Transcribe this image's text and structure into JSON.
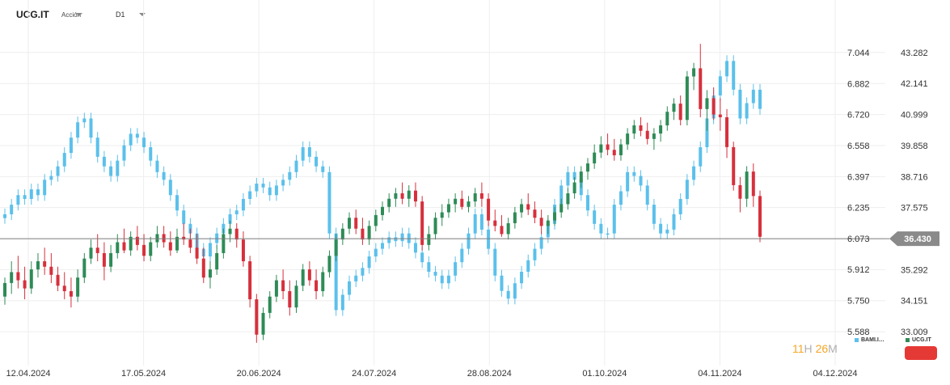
{
  "header": {
    "symbol": "UCG.IT",
    "instrument_type": "Acción",
    "timeframe": "D1"
  },
  "timer": {
    "hours": "11",
    "hours_unit": "H",
    "minutes": "26",
    "minutes_unit": "M"
  },
  "colors": {
    "up": "#2e8b57",
    "down": "#d6303c",
    "secondary": "#5bc0eb",
    "grid": "#eeeeee",
    "price_line": "#7d7d7d",
    "price_tag": "#8a8a8a",
    "alert": "#e53935"
  },
  "chart_data": {
    "type": "candlestick",
    "title": "",
    "xlabel": "",
    "ylabel": "",
    "x_tick_labels": [
      "12.04.2024",
      "17.05.2024",
      "20.06.2024",
      "24.07.2024",
      "28.08.2024",
      "01.10.2024",
      "04.11.2024",
      "04.12.2024"
    ],
    "y_left": {
      "name": "BAMI.I…",
      "ticks": [
        5.588,
        5.75,
        5.912,
        6.073,
        6.235,
        6.397,
        6.558,
        6.72,
        6.882,
        7.044
      ],
      "range": [
        5.44,
        7.2
      ]
    },
    "y_right": {
      "name": "UCG.IT",
      "ticks": [
        33.009,
        34.151,
        35.292,
        36.43,
        37.575,
        38.716,
        39.858,
        40.999,
        42.141,
        43.282
      ],
      "range": [
        31.97,
        44.38
      ]
    },
    "current_price": {
      "value": 36.43,
      "label": "36.430"
    },
    "series": [
      {
        "name": "BAMI.I…",
        "axis": "left",
        "color": "#5bc0eb",
        "closes": [
          6.2,
          6.25,
          6.3,
          6.28,
          6.33,
          6.3,
          6.38,
          6.4,
          6.45,
          6.52,
          6.6,
          6.68,
          6.7,
          6.6,
          6.5,
          6.45,
          6.4,
          6.48,
          6.56,
          6.62,
          6.6,
          6.55,
          6.48,
          6.42,
          6.38,
          6.3,
          6.22,
          6.15,
          6.1,
          6.02,
          5.98,
          6.05,
          6.1,
          6.15,
          6.2,
          6.22,
          6.28,
          6.32,
          6.36,
          6.34,
          6.3,
          6.35,
          6.38,
          6.42,
          6.48,
          6.55,
          6.5,
          6.45,
          6.42,
          6.1,
          5.7,
          5.78,
          5.85,
          5.88,
          5.92,
          5.98,
          6.02,
          6.05,
          6.08,
          6.06,
          6.1,
          6.05,
          6.0,
          5.95,
          5.9,
          5.88,
          5.84,
          5.88,
          5.95,
          6.02,
          6.1,
          6.2,
          6.12,
          6.02,
          5.88,
          5.8,
          5.76,
          5.84,
          5.9,
          5.96,
          6.02,
          6.08,
          6.15,
          6.25,
          6.35,
          6.42,
          6.38,
          6.3,
          6.22,
          6.15,
          6.1,
          6.1,
          6.25,
          6.32,
          6.42,
          6.4,
          6.35,
          6.25,
          6.15,
          6.1,
          6.12,
          6.2,
          6.28,
          6.38,
          6.45,
          6.55,
          6.7,
          6.82,
          6.92,
          7.0,
          6.85,
          6.7,
          6.78,
          6.85,
          6.75
        ]
      },
      {
        "name": "UCG.IT",
        "axis": "right",
        "color": "#2e8b57",
        "ohlc": [
          [
            34.3,
            35.0,
            34.0,
            34.8
          ],
          [
            34.8,
            35.6,
            34.4,
            35.2
          ],
          [
            35.2,
            35.8,
            34.6,
            34.9
          ],
          [
            34.9,
            35.4,
            34.2,
            34.6
          ],
          [
            34.6,
            35.6,
            34.4,
            35.3
          ],
          [
            35.3,
            35.9,
            35.0,
            35.6
          ],
          [
            35.6,
            36.1,
            35.1,
            35.4
          ],
          [
            35.4,
            35.9,
            34.8,
            35.1
          ],
          [
            35.1,
            35.4,
            34.5,
            34.7
          ],
          [
            34.7,
            35.2,
            34.2,
            34.5
          ],
          [
            34.5,
            35.0,
            33.9,
            34.3
          ],
          [
            34.3,
            35.3,
            34.1,
            35.0
          ],
          [
            35.0,
            35.9,
            34.8,
            35.7
          ],
          [
            35.7,
            36.4,
            35.5,
            36.1
          ],
          [
            36.1,
            36.6,
            35.6,
            35.9
          ],
          [
            35.9,
            36.3,
            34.9,
            35.4
          ],
          [
            35.4,
            36.2,
            35.2,
            35.9
          ],
          [
            35.9,
            36.6,
            35.7,
            36.3
          ],
          [
            36.3,
            36.8,
            35.9,
            36.0
          ],
          [
            36.0,
            36.7,
            35.8,
            36.5
          ],
          [
            36.5,
            36.9,
            36.0,
            36.2
          ],
          [
            36.2,
            36.6,
            35.6,
            35.8
          ],
          [
            35.8,
            36.5,
            35.6,
            36.3
          ],
          [
            36.3,
            36.9,
            36.1,
            36.6
          ],
          [
            36.6,
            36.9,
            36.1,
            36.3
          ],
          [
            36.3,
            36.7,
            35.8,
            36.0
          ],
          [
            36.0,
            36.8,
            35.9,
            36.5
          ],
          [
            36.5,
            37.0,
            36.2,
            36.4
          ],
          [
            36.4,
            36.8,
            35.9,
            36.1
          ],
          [
            36.1,
            36.6,
            35.5,
            35.7
          ],
          [
            35.7,
            36.1,
            34.8,
            35.0
          ],
          [
            35.0,
            35.6,
            34.6,
            35.3
          ],
          [
            35.3,
            36.2,
            35.1,
            35.9
          ],
          [
            35.9,
            36.8,
            35.7,
            36.6
          ],
          [
            36.6,
            37.1,
            36.3,
            36.8
          ],
          [
            36.8,
            37.0,
            36.1,
            36.4
          ],
          [
            36.4,
            36.7,
            35.4,
            35.6
          ],
          [
            35.6,
            35.8,
            33.9,
            34.2
          ],
          [
            34.2,
            34.4,
            32.6,
            32.9
          ],
          [
            32.9,
            33.9,
            32.7,
            33.7
          ],
          [
            33.7,
            34.5,
            33.5,
            34.3
          ],
          [
            34.3,
            35.1,
            34.1,
            34.9
          ],
          [
            34.9,
            35.3,
            34.2,
            34.5
          ],
          [
            34.5,
            34.9,
            33.6,
            33.9
          ],
          [
            33.9,
            34.9,
            33.7,
            34.7
          ],
          [
            34.7,
            35.5,
            34.5,
            35.3
          ],
          [
            35.3,
            35.6,
            34.7,
            34.9
          ],
          [
            34.9,
            35.3,
            34.2,
            34.5
          ],
          [
            34.5,
            35.4,
            34.3,
            35.2
          ],
          [
            35.2,
            36.0,
            35.0,
            35.8
          ],
          [
            35.8,
            36.6,
            35.6,
            36.4
          ],
          [
            36.4,
            37.0,
            36.2,
            36.8
          ],
          [
            36.8,
            37.4,
            36.6,
            37.2
          ],
          [
            37.2,
            37.5,
            36.6,
            36.8
          ],
          [
            36.8,
            37.2,
            36.2,
            36.4
          ],
          [
            36.4,
            37.1,
            36.2,
            36.9
          ],
          [
            36.9,
            37.5,
            36.7,
            37.3
          ],
          [
            37.3,
            37.8,
            37.1,
            37.6
          ],
          [
            37.6,
            38.1,
            37.4,
            37.9
          ],
          [
            37.9,
            38.3,
            37.6,
            38.1
          ],
          [
            38.1,
            38.5,
            37.7,
            37.9
          ],
          [
            37.9,
            38.4,
            37.6,
            38.2
          ],
          [
            38.2,
            38.5,
            37.6,
            37.8
          ],
          [
            37.8,
            38.0,
            36.0,
            36.2
          ],
          [
            36.2,
            36.9,
            36.0,
            36.6
          ],
          [
            36.6,
            37.4,
            36.4,
            37.2
          ],
          [
            37.2,
            37.7,
            36.9,
            37.4
          ],
          [
            37.4,
            37.9,
            37.2,
            37.7
          ],
          [
            37.7,
            38.1,
            37.4,
            37.9
          ],
          [
            37.9,
            38.2,
            37.5,
            37.6
          ],
          [
            37.6,
            38.0,
            37.4,
            37.8
          ],
          [
            37.8,
            38.3,
            37.6,
            38.1
          ],
          [
            38.1,
            38.5,
            37.6,
            37.9
          ],
          [
            37.9,
            38.1,
            36.9,
            37.1
          ],
          [
            37.1,
            37.5,
            36.7,
            36.9
          ],
          [
            36.9,
            37.3,
            36.5,
            36.6
          ],
          [
            36.6,
            37.2,
            36.4,
            37.0
          ],
          [
            37.0,
            37.6,
            36.8,
            37.4
          ],
          [
            37.4,
            37.9,
            37.2,
            37.7
          ],
          [
            37.7,
            38.1,
            37.3,
            37.5
          ],
          [
            37.5,
            37.8,
            37.0,
            37.2
          ],
          [
            37.2,
            37.5,
            36.6,
            36.9
          ],
          [
            36.9,
            37.3,
            36.6,
            37.1
          ],
          [
            37.1,
            37.6,
            36.9,
            37.4
          ],
          [
            37.4,
            37.9,
            37.2,
            37.7
          ],
          [
            37.7,
            38.3,
            37.5,
            38.1
          ],
          [
            38.1,
            38.7,
            37.9,
            38.5
          ],
          [
            38.5,
            39.1,
            38.3,
            38.9
          ],
          [
            38.9,
            39.4,
            38.6,
            39.2
          ],
          [
            39.2,
            39.9,
            39.0,
            39.6
          ],
          [
            39.6,
            40.2,
            39.4,
            39.9
          ],
          [
            39.9,
            40.3,
            39.5,
            39.7
          ],
          [
            39.7,
            40.1,
            39.3,
            39.5
          ],
          [
            39.5,
            40.1,
            39.3,
            39.9
          ],
          [
            39.9,
            40.5,
            39.7,
            40.3
          ],
          [
            40.3,
            40.8,
            40.1,
            40.6
          ],
          [
            40.6,
            40.9,
            40.2,
            40.4
          ],
          [
            40.4,
            40.7,
            39.9,
            40.1
          ],
          [
            40.1,
            40.5,
            39.7,
            40.3
          ],
          [
            40.3,
            40.8,
            40.0,
            40.6
          ],
          [
            40.6,
            41.3,
            40.4,
            41.1
          ],
          [
            41.1,
            41.6,
            40.8,
            41.4
          ],
          [
            41.4,
            41.7,
            40.6,
            40.8
          ],
          [
            40.8,
            42.6,
            40.6,
            42.4
          ],
          [
            42.4,
            42.9,
            41.9,
            42.7
          ],
          [
            42.7,
            43.6,
            40.9,
            41.2
          ],
          [
            41.2,
            41.9,
            40.4,
            41.6
          ],
          [
            41.6,
            42.0,
            40.8,
            41.0
          ],
          [
            41.0,
            41.6,
            40.4,
            40.9
          ],
          [
            40.9,
            41.2,
            39.4,
            39.8
          ],
          [
            39.8,
            40.0,
            38.2,
            38.4
          ],
          [
            38.4,
            38.7,
            37.4,
            37.9
          ],
          [
            37.9,
            39.1,
            37.6,
            38.9
          ],
          [
            38.9,
            39.2,
            37.6,
            38.0
          ],
          [
            38.0,
            38.2,
            36.3,
            36.5
          ]
        ]
      }
    ]
  }
}
